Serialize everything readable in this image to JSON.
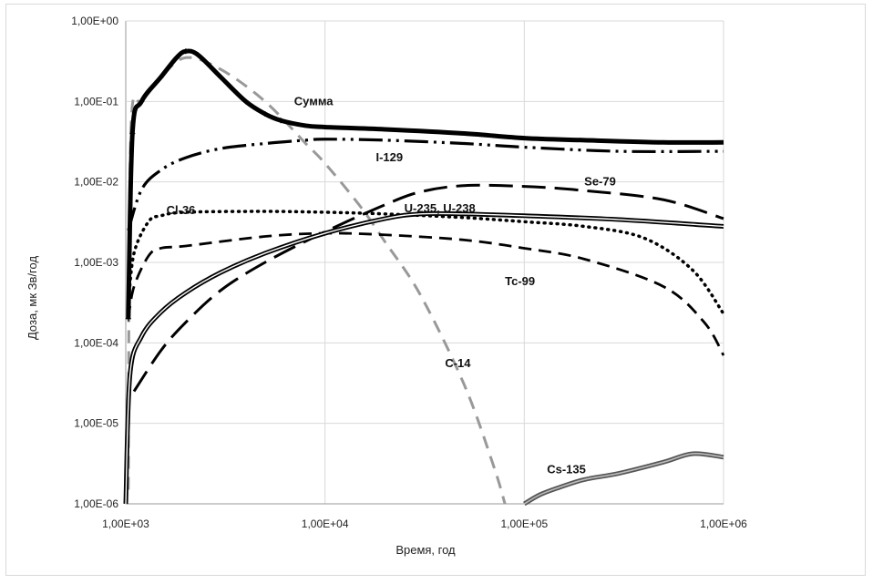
{
  "chart_data": {
    "type": "line",
    "xlabel": "Время, год",
    "ylabel": "Доза, мк Зв/год",
    "xscale": "log",
    "yscale": "log",
    "xlim": [
      1000,
      1000000
    ],
    "ylim": [
      1e-06,
      1
    ],
    "grid": true,
    "x_tick_labels": [
      "1,00E+03",
      "1,00E+04",
      "1,00E+05",
      "1,00E+06"
    ],
    "y_tick_labels": [
      "1,00E-06",
      "1,00E-05",
      "1,00E-04",
      "1,00E-03",
      "1,00E-02",
      "1,00E-01",
      "1,00E+00"
    ],
    "series": [
      {
        "name": "Сумма",
        "style": "thick-solid-cross",
        "color": "#000000",
        "points": [
          [
            1030,
            0.0002
          ],
          [
            1080,
            0.04
          ],
          [
            1200,
            0.1
          ],
          [
            1500,
            0.2
          ],
          [
            1800,
            0.35
          ],
          [
            2000,
            0.42
          ],
          [
            2300,
            0.38
          ],
          [
            3000,
            0.2
          ],
          [
            4000,
            0.1
          ],
          [
            5000,
            0.07
          ],
          [
            6000,
            0.058
          ],
          [
            8000,
            0.05
          ],
          [
            10000,
            0.048
          ],
          [
            20000,
            0.045
          ],
          [
            50000,
            0.04
          ],
          [
            100000,
            0.035
          ],
          [
            200000,
            0.033
          ],
          [
            500000,
            0.031
          ],
          [
            1000000,
            0.031
          ]
        ]
      },
      {
        "name": "I-129",
        "style": "dash-dot-dot",
        "color": "#000000",
        "points": [
          [
            1030,
            0.0025
          ],
          [
            1200,
            0.008
          ],
          [
            1500,
            0.014
          ],
          [
            2000,
            0.02
          ],
          [
            3000,
            0.026
          ],
          [
            5000,
            0.03
          ],
          [
            8000,
            0.033
          ],
          [
            10000,
            0.034
          ],
          [
            20000,
            0.033
          ],
          [
            50000,
            0.03
          ],
          [
            100000,
            0.027
          ],
          [
            300000,
            0.024
          ],
          [
            1000000,
            0.024
          ]
        ]
      },
      {
        "name": "Se-79",
        "style": "long-dash",
        "color": "#000000",
        "points": [
          [
            1100,
            2.5e-05
          ],
          [
            1500,
            8e-05
          ],
          [
            2000,
            0.00018
          ],
          [
            3000,
            0.00045
          ],
          [
            5000,
            0.001
          ],
          [
            10000,
            0.0024
          ],
          [
            20000,
            0.0052
          ],
          [
            30000,
            0.0075
          ],
          [
            50000,
            0.009
          ],
          [
            100000,
            0.0088
          ],
          [
            200000,
            0.0078
          ],
          [
            500000,
            0.006
          ],
          [
            1000000,
            0.0035
          ]
        ]
      },
      {
        "name": "Cl-36",
        "style": "dotted",
        "color": "#000000",
        "points": [
          [
            1030,
            0.0003
          ],
          [
            1100,
            0.0013
          ],
          [
            1300,
            0.0032
          ],
          [
            1500,
            0.0038
          ],
          [
            2000,
            0.0042
          ],
          [
            5000,
            0.0043
          ],
          [
            10000,
            0.0042
          ],
          [
            20000,
            0.004
          ],
          [
            50000,
            0.0036
          ],
          [
            100000,
            0.0032
          ],
          [
            200000,
            0.0028
          ],
          [
            400000,
            0.002
          ],
          [
            700000,
            0.0008
          ],
          [
            1000000,
            0.00023
          ]
        ]
      },
      {
        "name": "Tc-99",
        "style": "short-dash",
        "color": "#000000",
        "points": [
          [
            1030,
            0.0002
          ],
          [
            1100,
            0.0005
          ],
          [
            1300,
            0.0012
          ],
          [
            1500,
            0.0015
          ],
          [
            2000,
            0.0016
          ],
          [
            5000,
            0.0021
          ],
          [
            10000,
            0.0023
          ],
          [
            20000,
            0.0022
          ],
          [
            50000,
            0.0019
          ],
          [
            100000,
            0.0015
          ],
          [
            200000,
            0.0011
          ],
          [
            500000,
            0.0005
          ],
          [
            800000,
            0.00018
          ],
          [
            1000000,
            7e-05
          ]
        ]
      },
      {
        "name": "U-235, U-238",
        "style": "double-line",
        "color": "#000000",
        "points": [
          [
            1000,
            1e-06
          ],
          [
            1050,
            4e-05
          ],
          [
            1200,
            0.00012
          ],
          [
            1500,
            0.00024
          ],
          [
            2000,
            0.00042
          ],
          [
            3000,
            0.00075
          ],
          [
            5000,
            0.0013
          ],
          [
            10000,
            0.0023
          ],
          [
            20000,
            0.0035
          ],
          [
            30000,
            0.004
          ],
          [
            50000,
            0.004
          ],
          [
            100000,
            0.0038
          ],
          [
            300000,
            0.0034
          ],
          [
            1000000,
            0.0028
          ]
        ]
      },
      {
        "name": "C-14",
        "style": "gray-dash",
        "color": "#999999",
        "points": [
          [
            1030,
            1.5e-06
          ],
          [
            1060,
            0.04
          ],
          [
            1200,
            0.1
          ],
          [
            1500,
            0.2
          ],
          [
            2000,
            0.35
          ],
          [
            3000,
            0.25
          ],
          [
            5000,
            0.1
          ],
          [
            8000,
            0.03
          ],
          [
            10000,
            0.017
          ],
          [
            15000,
            0.005
          ],
          [
            20000,
            0.0018
          ],
          [
            30000,
            0.0004
          ],
          [
            50000,
            3e-05
          ],
          [
            70000,
            3e-06
          ],
          [
            80000,
            1e-06
          ]
        ]
      },
      {
        "name": "Cs-135",
        "style": "gray-double",
        "color": "#555555",
        "points": [
          [
            100000,
            1e-06
          ],
          [
            120000,
            1.3e-06
          ],
          [
            150000,
            1.6e-06
          ],
          [
            200000,
            2e-06
          ],
          [
            300000,
            2.4e-06
          ],
          [
            500000,
            3.3e-06
          ],
          [
            700000,
            4.2e-06
          ],
          [
            1000000,
            3.8e-06
          ]
        ]
      }
    ],
    "annotations": [
      {
        "text": "Сумма",
        "x": 7000,
        "y": 0.09,
        "series": "Сумма"
      },
      {
        "text": "I-129",
        "x": 18000,
        "y": 0.018,
        "series": "I-129"
      },
      {
        "text": "Se-79",
        "x": 200000,
        "y": 0.009,
        "series": "Se-79"
      },
      {
        "text": "Cl-36",
        "x": 1600,
        "y": 0.004,
        "series": "Cl-36"
      },
      {
        "text": "U-235, U-238",
        "x": 25000,
        "y": 0.0042,
        "series": "U-235, U-238"
      },
      {
        "text": "Tc-99",
        "x": 80000,
        "y": 0.00052,
        "series": "Tc-99"
      },
      {
        "text": "C-14",
        "x": 40000,
        "y": 5e-05,
        "series": "C-14"
      },
      {
        "text": "Cs-135",
        "x": 130000,
        "y": 2.4e-06,
        "series": "Cs-135"
      }
    ]
  }
}
